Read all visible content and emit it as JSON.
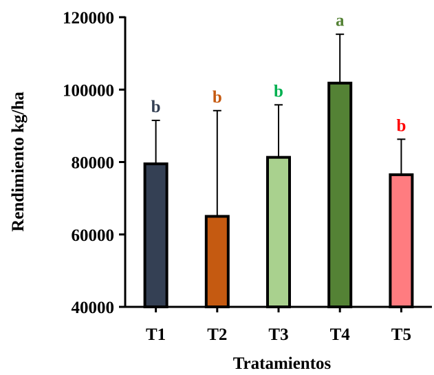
{
  "chart_data": {
    "type": "bar",
    "title": "",
    "xlabel": "Tratamientos",
    "ylabel": "Rendimiento kg/ha",
    "ylim": [
      40000,
      120000
    ],
    "yticks": [
      40000,
      60000,
      80000,
      100000,
      120000
    ],
    "categories": [
      "T1",
      "T2",
      "T3",
      "T4",
      "T5"
    ],
    "values": [
      79500,
      65000,
      81300,
      101800,
      76500
    ],
    "error_upper": [
      91500,
      94200,
      95800,
      115300,
      86300
    ],
    "significance": [
      "b",
      "b",
      "b",
      "a",
      "b"
    ],
    "bar_colors": [
      "#344054",
      "#c55a11",
      "#a9d18e",
      "#548235",
      "#ff7c80"
    ],
    "letter_colors": [
      "#344054",
      "#c55a11",
      "#00b050",
      "#548235",
      "#ff0000"
    ],
    "grid": false,
    "legend": "none"
  }
}
